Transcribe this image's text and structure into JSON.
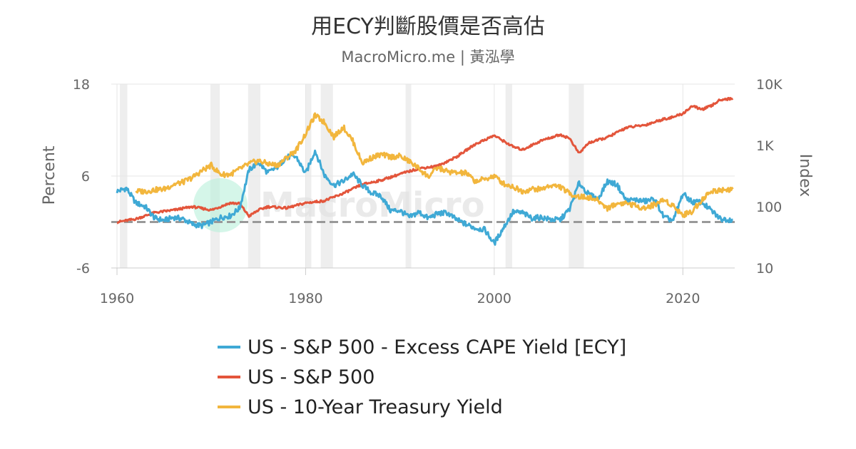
{
  "colors": {
    "ecy": "#3fa9d5",
    "sp500": "#e3553b",
    "treasury": "#f2b63d",
    "recession": "#eeeeee",
    "zero_line": "#999999",
    "grid": "#e6e6e6",
    "watermark_text": "#e2e2e2",
    "watermark_circle": "#b9f0da"
  },
  "chart_data": {
    "type": "line",
    "title": "用ECY判斷股價是否高估",
    "subtitle": "MacroMicro.me | 黃泓學",
    "watermark": "MacroMicro",
    "xlabel": "",
    "xlim": [
      1960,
      2025.5
    ],
    "x_ticks": [
      "1960",
      "1980",
      "2000",
      "2020"
    ],
    "x_tick_values": [
      1960,
      1980,
      2000,
      2020
    ],
    "left_axis": {
      "label": "Percent",
      "ylim": [
        -6,
        18
      ],
      "ticks": [
        "-6",
        "6",
        "18"
      ],
      "tick_values": [
        -6,
        6,
        18
      ],
      "reference_line": {
        "value": 0,
        "style": "dashed"
      }
    },
    "right_axis": {
      "label": "Index",
      "scale": "log",
      "ylim": [
        10,
        10000
      ],
      "ticks": [
        "10",
        "100",
        "1K",
        "10K"
      ],
      "tick_values": [
        10,
        100,
        1000,
        10000
      ]
    },
    "recessions": [
      [
        1960.3,
        1961.1
      ],
      [
        1969.9,
        1970.9
      ],
      [
        1973.9,
        1975.2
      ],
      [
        1980.0,
        1980.6
      ],
      [
        1981.6,
        1982.9
      ],
      [
        1990.6,
        1991.2
      ],
      [
        2001.2,
        2001.9
      ],
      [
        2007.9,
        2009.5
      ]
    ],
    "series": [
      {
        "name": "US - S&P 500 - Excess CAPE Yield [ECY]",
        "axis": "left",
        "x": [
          1960,
          1961,
          1962,
          1963,
          1964,
          1965,
          1966,
          1967,
          1968,
          1969,
          1970,
          1971,
          1972,
          1973,
          1974,
          1975,
          1976,
          1977,
          1978,
          1979,
          1980,
          1981,
          1982,
          1983,
          1984,
          1985,
          1986,
          1987,
          1988,
          1989,
          1990,
          1991,
          1992,
          1993,
          1994,
          1995,
          1996,
          1997,
          1998,
          1999,
          2000,
          2001,
          2002,
          2003,
          2004,
          2005,
          2006,
          2007,
          2008,
          2009,
          2010,
          2011,
          2012,
          2013,
          2014,
          2015,
          2016,
          2017,
          2018,
          2019,
          2020,
          2021,
          2022,
          2023,
          2024,
          2025.3
        ],
        "values": [
          4.0,
          4.4,
          2.5,
          2.0,
          0.5,
          0.2,
          0.6,
          0.4,
          -0.3,
          -0.5,
          0.0,
          0.6,
          0.8,
          1.8,
          6.8,
          7.8,
          6.4,
          7.2,
          8.5,
          8.5,
          6.3,
          9.3,
          6.1,
          4.8,
          5.3,
          6.3,
          4.8,
          3.8,
          3.4,
          1.5,
          1.5,
          0.6,
          1.3,
          0.5,
          1.1,
          1.2,
          0.3,
          -0.3,
          -0.8,
          -1.0,
          -2.8,
          -0.7,
          1.3,
          1.2,
          0.5,
          0.6,
          0.3,
          0.3,
          1.7,
          5.1,
          3.6,
          3.0,
          5.3,
          4.9,
          2.8,
          2.9,
          2.7,
          3.0,
          0.6,
          0.2,
          3.7,
          2.6,
          2.6,
          1.5,
          0.4,
          0.3
        ]
      },
      {
        "name": "US - S&P 500",
        "axis": "right",
        "x": [
          1960,
          1962,
          1964,
          1966,
          1968,
          1970,
          1972,
          1973,
          1974,
          1975,
          1976,
          1978,
          1980,
          1982,
          1984,
          1986,
          1988,
          1990,
          1992,
          1994,
          1996,
          1998,
          2000,
          2002,
          2003,
          2005,
          2007,
          2008,
          2009,
          2010,
          2012,
          2014,
          2016,
          2018,
          2019,
          2020,
          2021,
          2022,
          2023,
          2024,
          2025.3
        ],
        "values": [
          56,
          63,
          80,
          88,
          100,
          88,
          115,
          112,
          70,
          88,
          100,
          95,
          115,
          125,
          165,
          230,
          270,
          340,
          420,
          460,
          650,
          1050,
          1450,
          950,
          850,
          1200,
          1500,
          1300,
          740,
          1100,
          1350,
          1950,
          2150,
          2700,
          2900,
          3300,
          4400,
          3850,
          4400,
          5600,
          5800
        ]
      },
      {
        "name": "US - 10-Year Treasury Yield",
        "axis": "left",
        "x": [
          1962,
          1963,
          1964,
          1965,
          1966,
          1967,
          1968,
          1969,
          1970,
          1971,
          1972,
          1973,
          1974,
          1975,
          1976,
          1977,
          1978,
          1979,
          1980,
          1981,
          1982,
          1983,
          1984,
          1985,
          1986,
          1987,
          1988,
          1989,
          1990,
          1991,
          1992,
          1993,
          1994,
          1995,
          1996,
          1997,
          1998,
          1999,
          2000,
          2001,
          2002,
          2003,
          2004,
          2005,
          2006,
          2007,
          2008,
          2009,
          2010,
          2011,
          2012,
          2013,
          2014,
          2015,
          2016,
          2017,
          2018,
          2019,
          2020,
          2021,
          2022,
          2023,
          2024,
          2025.3
        ],
        "values": [
          4.0,
          4.0,
          4.2,
          4.3,
          4.9,
          5.2,
          5.8,
          6.7,
          7.4,
          6.2,
          6.2,
          6.9,
          7.6,
          8.0,
          7.6,
          7.4,
          8.4,
          9.4,
          11.5,
          13.9,
          13.0,
          11.1,
          12.4,
          10.6,
          7.7,
          8.4,
          8.8,
          8.5,
          8.6,
          7.9,
          7.0,
          5.9,
          7.1,
          6.6,
          6.4,
          6.4,
          5.3,
          5.6,
          6.0,
          5.0,
          4.6,
          4.0,
          4.3,
          4.3,
          4.8,
          4.6,
          3.7,
          3.3,
          3.2,
          2.8,
          1.8,
          2.4,
          2.5,
          2.1,
          1.8,
          2.3,
          2.9,
          2.1,
          0.9,
          1.4,
          2.9,
          4.0,
          4.2,
          4.3
        ]
      }
    ]
  },
  "legend": [
    {
      "label": "US - S&P 500 - Excess CAPE Yield [ECY]"
    },
    {
      "label": "US - S&P 500"
    },
    {
      "label": "US - 10-Year Treasury Yield"
    }
  ]
}
